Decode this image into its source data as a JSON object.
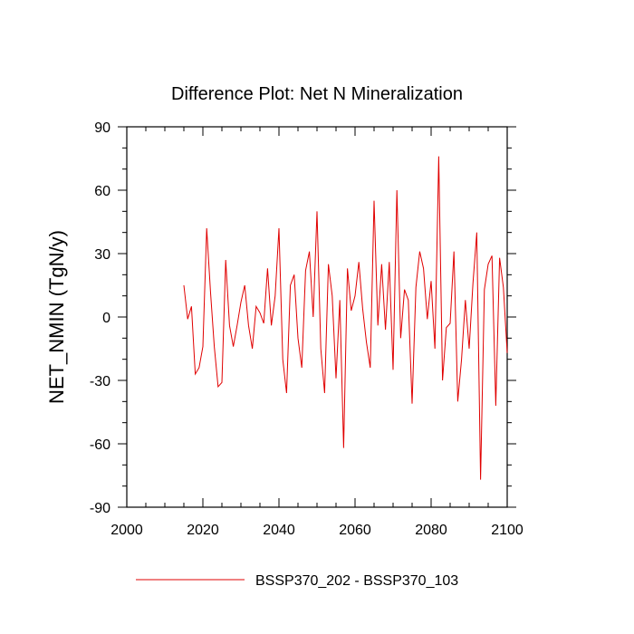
{
  "chart_data": {
    "type": "line",
    "title": "Difference Plot: Net N Mineralization",
    "xlabel": "",
    "ylabel": "NET_NMIN  (TgN/y)",
    "xlim": [
      2000,
      2100
    ],
    "ylim": [
      -90,
      90
    ],
    "xticks": [
      2000,
      2020,
      2040,
      2060,
      2080,
      2100
    ],
    "yticks": [
      -90,
      -60,
      -30,
      0,
      30,
      60,
      90
    ],
    "xtick_labels": [
      "2000",
      "2020",
      "2040",
      "2060",
      "2080",
      "2100"
    ],
    "ytick_labels": [
      "-90",
      "-60",
      "-30",
      "0",
      "30",
      "60",
      "90"
    ],
    "legend_position": "bottom-center",
    "series": [
      {
        "name": "BSSP370_202 - BSSP370_103",
        "color": "#e00000",
        "x_start": 2015,
        "x_step": 1,
        "values": [
          15,
          -1,
          5,
          -27,
          -24,
          -14,
          42,
          12,
          -14,
          -33,
          -31,
          27,
          -4,
          -14,
          -4,
          7,
          15,
          -4,
          -15,
          5,
          2,
          -3,
          23,
          -4,
          10,
          42,
          -20,
          -36,
          15,
          20,
          -10,
          -24,
          22,
          31,
          0,
          50,
          -15,
          -36,
          25,
          10,
          -29,
          8,
          -62,
          23,
          3,
          10,
          26,
          4,
          -12,
          -24,
          55,
          -4,
          25,
          -6,
          26,
          -25,
          60,
          -10,
          13,
          8,
          -41,
          14,
          31,
          23,
          -1,
          17,
          -15,
          76,
          -30,
          -5,
          -3,
          31,
          -40,
          -20,
          8,
          -15,
          16,
          40,
          -77,
          13,
          25,
          29,
          -42,
          28,
          14,
          -17
        ]
      }
    ]
  }
}
